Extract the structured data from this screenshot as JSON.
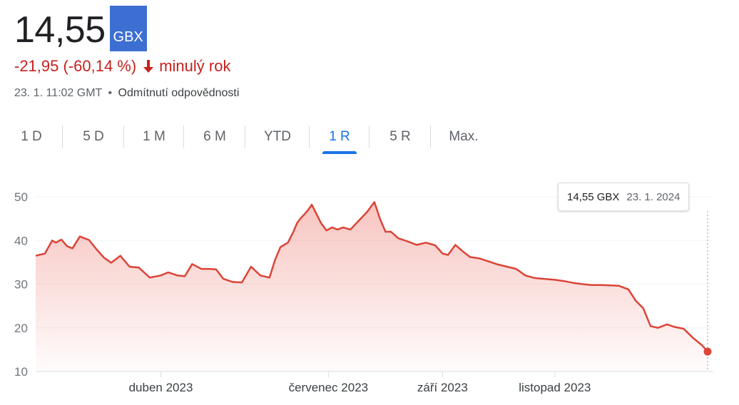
{
  "quote": {
    "price": "14,55",
    "currency": "GBX",
    "change": "-21,95 (-60,14 %)",
    "period": "minulý rok",
    "timestamp": "23. 1. 11:02 GMT",
    "separator": "•",
    "disclaimer": "Odmítnutí odpovědnosti"
  },
  "tabs": [
    {
      "label": "1 D",
      "active": false
    },
    {
      "label": "5 D",
      "active": false
    },
    {
      "label": "1 M",
      "active": false
    },
    {
      "label": "6 M",
      "active": false
    },
    {
      "label": "YTD",
      "active": false
    },
    {
      "label": "1 R",
      "active": true
    },
    {
      "label": "5 R",
      "active": false
    },
    {
      "label": "Max.",
      "active": false
    }
  ],
  "tooltip": {
    "price": "14,55 GBX",
    "date": "23. 1. 2024"
  },
  "colors": {
    "accent": "#1a73e8",
    "negative": "#c5221f",
    "line": "#db4437",
    "currency_badge": "#3c6fd1"
  },
  "icons": {
    "change_arrow": "arrow-down-icon"
  },
  "chart_data": {
    "type": "area",
    "title": "",
    "xlabel": "",
    "ylabel": "",
    "ylim": [
      10,
      50
    ],
    "yticks": [
      10,
      20,
      30,
      40,
      50
    ],
    "x_range": [
      "2023-01-23",
      "2024-01-23"
    ],
    "xticks": [
      {
        "label": "duben 2023",
        "date": "2023-04-01"
      },
      {
        "label": "červenec 2023",
        "date": "2023-07-01"
      },
      {
        "label": "září 2023",
        "date": "2023-09-01"
      },
      {
        "label": "listopad 2023",
        "date": "2023-11-01"
      }
    ],
    "grid": true,
    "legend": "none",
    "series": [
      {
        "x": [
          "2023-01-23",
          "2023-01-28",
          "2023-02-01",
          "2023-02-03",
          "2023-02-06",
          "2023-02-09",
          "2023-02-12",
          "2023-02-16",
          "2023-02-21",
          "2023-02-25",
          "2023-03-01",
          "2023-03-05",
          "2023-03-10",
          "2023-03-15",
          "2023-03-20",
          "2023-03-26",
          "2023-04-01",
          "2023-04-05",
          "2023-04-10",
          "2023-04-14",
          "2023-04-18",
          "2023-04-23",
          "2023-04-27",
          "2023-05-01",
          "2023-05-05",
          "2023-05-10",
          "2023-05-15",
          "2023-05-20",
          "2023-05-25",
          "2023-05-30",
          "2023-06-02",
          "2023-06-05",
          "2023-06-09",
          "2023-06-12",
          "2023-06-14",
          "2023-06-16",
          "2023-06-18",
          "2023-06-20",
          "2023-06-22",
          "2023-06-24",
          "2023-06-27",
          "2023-06-30",
          "2023-07-03",
          "2023-07-06",
          "2023-07-09",
          "2023-07-13",
          "2023-07-17",
          "2023-07-22",
          "2023-07-26",
          "2023-07-29",
          "2023-08-01",
          "2023-08-04",
          "2023-08-08",
          "2023-08-13",
          "2023-08-18",
          "2023-08-23",
          "2023-08-28",
          "2023-09-01",
          "2023-09-04",
          "2023-09-08",
          "2023-09-12",
          "2023-09-16",
          "2023-09-21",
          "2023-09-26",
          "2023-10-01",
          "2023-10-06",
          "2023-10-11",
          "2023-10-16",
          "2023-10-21",
          "2023-10-26",
          "2023-11-01",
          "2023-11-06",
          "2023-11-11",
          "2023-11-16",
          "2023-11-21",
          "2023-11-26",
          "2023-12-01",
          "2023-12-06",
          "2023-12-11",
          "2023-12-15",
          "2023-12-19",
          "2023-12-23",
          "2023-12-27",
          "2024-01-01",
          "2024-01-05",
          "2024-01-10",
          "2024-01-15",
          "2024-01-20",
          "2024-01-23"
        ],
        "values": [
          36.5,
          37.0,
          40.0,
          39.5,
          40.2,
          38.7,
          38.2,
          40.9,
          40.1,
          38.0,
          36.1,
          34.9,
          36.5,
          34.0,
          33.8,
          31.5,
          32.0,
          32.7,
          32.0,
          31.8,
          34.6,
          33.5,
          33.5,
          33.4,
          31.2,
          30.5,
          30.4,
          34.0,
          32.0,
          31.5,
          35.5,
          38.5,
          39.5,
          42.0,
          44.0,
          45.1,
          46.0,
          47.0,
          48.2,
          46.5,
          44.0,
          42.3,
          43.0,
          42.5,
          43.0,
          42.5,
          44.3,
          46.5,
          48.8,
          45.0,
          42.0,
          42.0,
          40.5,
          39.8,
          39.0,
          39.5,
          38.9,
          37.0,
          36.7,
          39.0,
          37.5,
          36.2,
          35.9,
          35.2,
          34.5,
          34.0,
          33.5,
          32.0,
          31.4,
          31.2,
          31.0,
          30.7,
          30.3,
          30.0,
          29.8,
          29.8,
          29.7,
          29.6,
          28.8,
          26.2,
          24.5,
          20.4,
          20.0,
          20.8,
          20.2,
          19.8,
          17.7,
          16.0,
          14.55
        ]
      }
    ]
  }
}
